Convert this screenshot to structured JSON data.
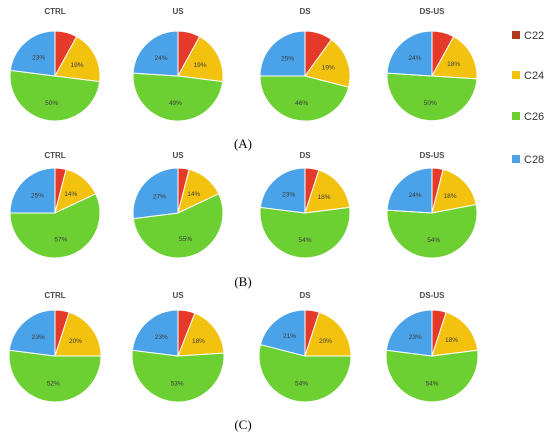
{
  "colors": {
    "C22": "#b23a1e",
    "C24": "#f3c20f",
    "C26": "#6ccf32",
    "C28": "#4aa3e8",
    "C22_shade": "#e53a2a"
  },
  "legend": [
    {
      "label": "C22",
      "color": "#b23a1e"
    },
    {
      "label": "C24",
      "color": "#f3c20f"
    },
    {
      "label": "C26",
      "color": "#6ccf32"
    },
    {
      "label": "C28",
      "color": "#4aa3e8"
    }
  ],
  "chart_data": [
    {
      "type": "pie",
      "panel": "A",
      "title": "CTRL",
      "categories": [
        "C22",
        "C24",
        "C26",
        "C28"
      ],
      "values": [
        8,
        19,
        50,
        23
      ],
      "labels": [
        "",
        "19%",
        "50%",
        "23%"
      ]
    },
    {
      "type": "pie",
      "panel": "A",
      "title": "US",
      "categories": [
        "C22",
        "C24",
        "C26",
        "C28"
      ],
      "values": [
        8,
        19,
        49,
        24
      ],
      "labels": [
        "",
        "19%",
        "49%",
        "24%"
      ]
    },
    {
      "type": "pie",
      "panel": "A",
      "title": "DS",
      "categories": [
        "C22",
        "C24",
        "C26",
        "C28"
      ],
      "values": [
        10,
        19,
        46,
        25
      ],
      "labels": [
        "",
        "19%",
        "46%",
        "25%"
      ]
    },
    {
      "type": "pie",
      "panel": "A",
      "title": "DS-US",
      "categories": [
        "C22",
        "C24",
        "C26",
        "C28"
      ],
      "values": [
        8,
        18,
        50,
        24
      ],
      "labels": [
        "",
        "18%",
        "50%",
        "24%"
      ]
    },
    {
      "type": "pie",
      "panel": "B",
      "title": "CTRL",
      "categories": [
        "C22",
        "C24",
        "C26",
        "C28"
      ],
      "values": [
        4,
        14,
        57,
        25
      ],
      "labels": [
        "",
        "14%",
        "57%",
        "25%"
      ]
    },
    {
      "type": "pie",
      "panel": "B",
      "title": "US",
      "categories": [
        "C22",
        "C24",
        "C26",
        "C28"
      ],
      "values": [
        4,
        14,
        55,
        27
      ],
      "labels": [
        "",
        "14%",
        "55%",
        "27%"
      ]
    },
    {
      "type": "pie",
      "panel": "B",
      "title": "DS",
      "categories": [
        "C22",
        "C24",
        "C26",
        "C28"
      ],
      "values": [
        5,
        18,
        54,
        23
      ],
      "labels": [
        "",
        "18%",
        "54%",
        "23%"
      ]
    },
    {
      "type": "pie",
      "panel": "B",
      "title": "DS-US",
      "categories": [
        "C22",
        "C24",
        "C26",
        "C28"
      ],
      "values": [
        4,
        18,
        54,
        24
      ],
      "labels": [
        "",
        "18%",
        "54%",
        "24%"
      ]
    },
    {
      "type": "pie",
      "panel": "C",
      "title": "CTRL",
      "categories": [
        "C22",
        "C24",
        "C26",
        "C28"
      ],
      "values": [
        5,
        20,
        52,
        23
      ],
      "labels": [
        "",
        "20%",
        "52%",
        "23%"
      ]
    },
    {
      "type": "pie",
      "panel": "C",
      "title": "US",
      "categories": [
        "C22",
        "C24",
        "C26",
        "C28"
      ],
      "values": [
        6,
        18,
        53,
        23
      ],
      "labels": [
        "",
        "18%",
        "53%",
        "23%"
      ]
    },
    {
      "type": "pie",
      "panel": "C",
      "title": "DS",
      "categories": [
        "C22",
        "C24",
        "C26",
        "C28"
      ],
      "values": [
        5,
        20,
        54,
        21
      ],
      "labels": [
        "",
        "20%",
        "54%",
        "21%"
      ]
    },
    {
      "type": "pie",
      "panel": "C",
      "title": "DS-US",
      "categories": [
        "C22",
        "C24",
        "C26",
        "C28"
      ],
      "values": [
        5,
        18,
        54,
        23
      ],
      "labels": [
        "",
        "18%",
        "54%",
        "23%"
      ]
    }
  ],
  "panel_labels": [
    "(A)",
    "(B)",
    "(C)"
  ]
}
